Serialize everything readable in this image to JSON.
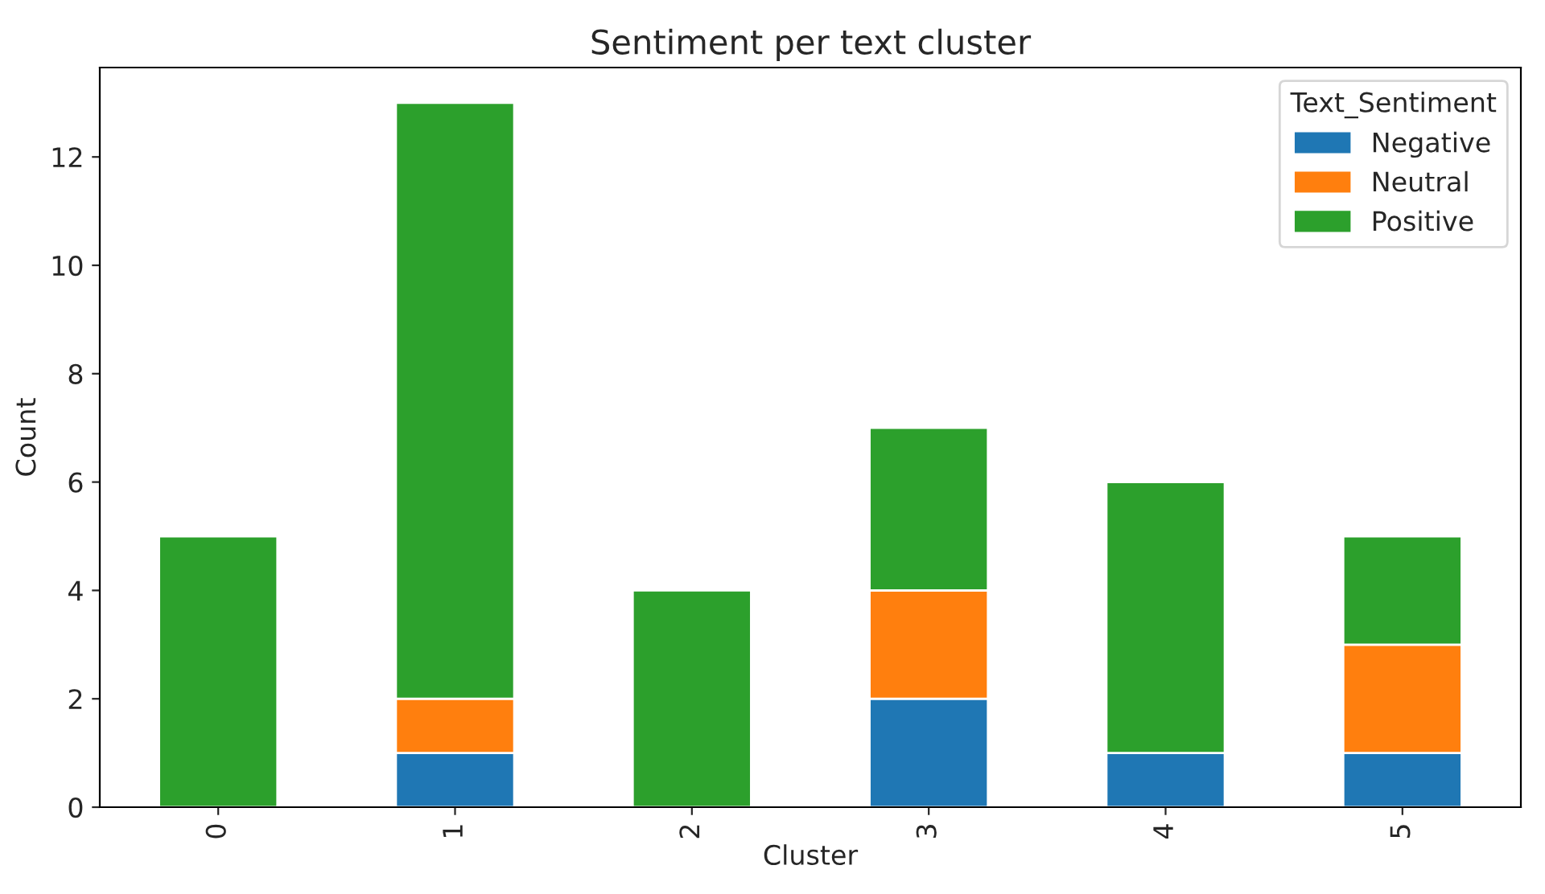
{
  "chart_data": {
    "type": "bar",
    "title": "Sentiment per text cluster",
    "xlabel": "Cluster",
    "ylabel": "Count",
    "legend_title": "Text_Sentiment",
    "categories": [
      "0",
      "1",
      "2",
      "3",
      "4",
      "5"
    ],
    "stacked": true,
    "series": [
      {
        "name": "Negative",
        "color": "#1f77b4",
        "values": [
          0,
          1,
          0,
          2,
          1,
          1
        ]
      },
      {
        "name": "Neutral",
        "color": "#ff7f0e",
        "values": [
          0,
          1,
          0,
          2,
          0,
          2
        ]
      },
      {
        "name": "Positive",
        "color": "#2ca02c",
        "values": [
          5,
          11,
          4,
          3,
          5,
          2
        ]
      }
    ],
    "ylim": [
      0,
      13.65
    ],
    "yticks": [
      0,
      2,
      4,
      6,
      8,
      10,
      12
    ],
    "grid": false,
    "legend": "top right"
  }
}
